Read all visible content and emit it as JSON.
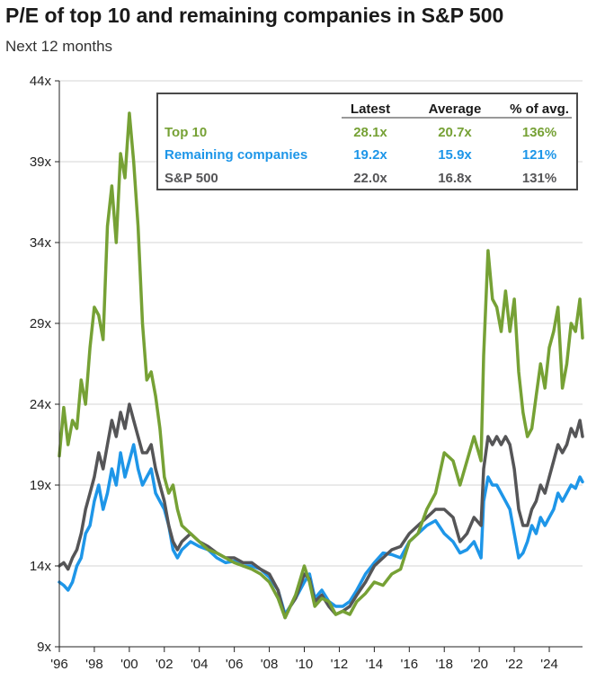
{
  "title": "P/E of top 10 and remaining companies in S&P 500",
  "subtitle": "Next 12 months",
  "chart_data": {
    "type": "line",
    "title": "P/E of top 10 and remaining companies in S&P 500",
    "subtitle": "Next 12 months",
    "xlabel": "",
    "ylabel": "",
    "xlim": [
      1996,
      2025.9
    ],
    "ylim": [
      9,
      44
    ],
    "y_ticks": [
      9,
      14,
      19,
      24,
      29,
      34,
      39,
      44
    ],
    "y_tick_labels": [
      "9x",
      "14x",
      "19x",
      "24x",
      "29x",
      "34x",
      "39x",
      "44x"
    ],
    "x_ticks": [
      1996,
      1998,
      2000,
      2002,
      2004,
      2006,
      2008,
      2010,
      2012,
      2014,
      2016,
      2018,
      2020,
      2022,
      2024
    ],
    "x_tick_labels": [
      "'96",
      "'98",
      "'00",
      "'02",
      "'04",
      "'06",
      "'08",
      "'10",
      "'12",
      "'14",
      "'16",
      "'18",
      "'20",
      "'22",
      "'24"
    ],
    "grid": "horizontal",
    "legend_table": {
      "headers": [
        "",
        "Latest",
        "Average",
        "% of avg."
      ],
      "rows": [
        {
          "name": "Top 10",
          "latest": "28.1x",
          "average": "20.7x",
          "pct": "136%",
          "color": "#76A135"
        },
        {
          "name": "Remaining companies",
          "latest": "19.2x",
          "average": "15.9x",
          "pct": "121%",
          "color": "#1E96E8"
        },
        {
          "name": "S&P 500",
          "latest": "22.0x",
          "average": "16.8x",
          "pct": "131%",
          "color": "#555557"
        }
      ]
    },
    "x": [
      1996.0,
      1996.25,
      1996.5,
      1996.75,
      1997.0,
      1997.25,
      1997.5,
      1997.75,
      1998.0,
      1998.25,
      1998.5,
      1998.75,
      1999.0,
      1999.25,
      1999.5,
      1999.75,
      2000.0,
      2000.25,
      2000.5,
      2000.75,
      2001.0,
      2001.25,
      2001.5,
      2001.75,
      2002.0,
      2002.25,
      2002.5,
      2002.75,
      2003.0,
      2003.5,
      2004.0,
      2004.5,
      2005.0,
      2005.5,
      2006.0,
      2006.5,
      2007.0,
      2007.5,
      2008.0,
      2008.5,
      2008.9,
      2009.2,
      2009.5,
      2010.0,
      2010.3,
      2010.6,
      2011.0,
      2011.4,
      2011.8,
      2012.2,
      2012.6,
      2013.0,
      2013.5,
      2014.0,
      2014.5,
      2015.0,
      2015.5,
      2016.0,
      2016.5,
      2017.0,
      2017.5,
      2018.0,
      2018.5,
      2018.9,
      2019.3,
      2019.7,
      2020.1,
      2020.25,
      2020.5,
      2020.75,
      2021.0,
      2021.25,
      2021.5,
      2021.75,
      2022.0,
      2022.25,
      2022.5,
      2022.75,
      2023.0,
      2023.25,
      2023.5,
      2023.75,
      2024.0,
      2024.25,
      2024.5,
      2024.75,
      2025.0,
      2025.25,
      2025.5,
      2025.75,
      2025.9
    ],
    "series": [
      {
        "name": "Top 10",
        "color": "#76A135",
        "values": [
          20.8,
          23.8,
          21.5,
          23.0,
          22.5,
          25.5,
          24.0,
          27.5,
          30.0,
          29.5,
          28.0,
          35.0,
          37.5,
          34.0,
          39.5,
          38.0,
          42.0,
          39.0,
          35.0,
          29.0,
          25.5,
          26.0,
          24.5,
          22.5,
          19.5,
          18.5,
          19.0,
          17.5,
          16.5,
          16.0,
          15.5,
          15.0,
          14.8,
          14.5,
          14.2,
          14.0,
          13.8,
          13.5,
          13.0,
          12.0,
          10.8,
          11.5,
          12.2,
          14.0,
          13.0,
          11.5,
          12.0,
          11.8,
          11.0,
          11.2,
          11.0,
          11.8,
          12.3,
          13.0,
          12.8,
          13.5,
          13.8,
          15.5,
          16.0,
          17.5,
          18.5,
          21.0,
          20.5,
          19.0,
          20.5,
          22.0,
          20.5,
          27.0,
          33.5,
          30.5,
          30.0,
          28.5,
          31.0,
          28.5,
          30.5,
          26.0,
          23.5,
          22.0,
          22.5,
          24.5,
          26.5,
          25.0,
          27.5,
          28.5,
          30.0,
          25.0,
          26.5,
          29.0,
          28.5,
          30.5,
          28.1
        ]
      },
      {
        "name": "Remaining companies",
        "color": "#1E96E8",
        "values": [
          13.0,
          12.8,
          12.5,
          13.0,
          14.0,
          14.5,
          16.0,
          16.5,
          18.0,
          19.0,
          17.5,
          18.5,
          20.0,
          19.0,
          21.0,
          19.5,
          20.5,
          21.5,
          20.0,
          19.0,
          19.5,
          20.0,
          18.5,
          18.0,
          17.5,
          16.5,
          15.0,
          14.5,
          15.0,
          15.5,
          15.2,
          15.0,
          14.5,
          14.2,
          14.3,
          14.0,
          14.0,
          13.8,
          13.3,
          12.5,
          11.0,
          11.5,
          12.0,
          13.0,
          13.5,
          12.0,
          12.5,
          11.8,
          11.5,
          11.5,
          11.8,
          12.5,
          13.5,
          14.2,
          14.8,
          14.7,
          14.5,
          15.5,
          16.0,
          16.5,
          16.8,
          16.0,
          15.5,
          14.8,
          15.0,
          15.5,
          14.5,
          18.0,
          19.5,
          19.0,
          19.0,
          18.5,
          18.0,
          17.5,
          16.0,
          14.5,
          14.8,
          15.5,
          16.5,
          16.0,
          17.0,
          16.5,
          17.0,
          17.5,
          18.5,
          18.0,
          18.5,
          19.0,
          18.8,
          19.5,
          19.2
        ]
      },
      {
        "name": "S&P 500",
        "color": "#555557",
        "values": [
          14.0,
          14.2,
          13.8,
          14.5,
          15.0,
          16.0,
          17.5,
          18.5,
          19.5,
          21.0,
          20.0,
          21.5,
          23.0,
          22.0,
          23.5,
          22.5,
          24.0,
          23.0,
          22.0,
          21.0,
          21.0,
          21.5,
          20.0,
          19.0,
          18.0,
          16.5,
          15.5,
          15.0,
          15.5,
          16.0,
          15.5,
          15.2,
          14.8,
          14.5,
          14.5,
          14.2,
          14.2,
          13.8,
          13.5,
          12.5,
          10.8,
          11.5,
          12.0,
          13.5,
          13.2,
          11.8,
          12.2,
          11.5,
          11.0,
          11.2,
          11.5,
          12.2,
          13.0,
          14.0,
          14.5,
          15.0,
          15.2,
          16.0,
          16.5,
          17.0,
          17.5,
          17.5,
          17.0,
          15.5,
          16.0,
          17.0,
          16.5,
          20.0,
          22.0,
          21.5,
          22.0,
          21.5,
          22.0,
          21.5,
          20.0,
          17.5,
          16.5,
          16.5,
          17.5,
          18.0,
          19.0,
          18.5,
          19.5,
          20.5,
          21.5,
          21.0,
          21.5,
          22.5,
          22.0,
          23.0,
          22.0
        ]
      }
    ]
  }
}
